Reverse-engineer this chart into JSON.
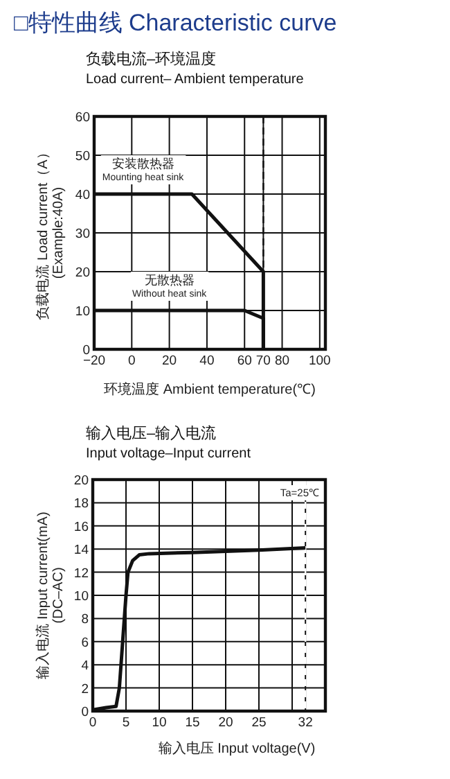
{
  "chart_data": [
    {
      "type": "line",
      "title": "□特性曲线 Characteristic curve",
      "subtitle": "负载电流–环境温度\nLoad current– Ambient temperature",
      "xlabel": "环境温度 Ambient temperature(℃)",
      "ylabel": "负载电流 Load current（A）\n(Example:40A)",
      "xlim": [
        -20,
        103
      ],
      "ylim": [
        0,
        60
      ],
      "xticks": [
        -20,
        0,
        20,
        40,
        60,
        70,
        80,
        100
      ],
      "yticks": [
        0,
        10,
        20,
        30,
        40,
        50,
        60
      ],
      "grid": true,
      "series": [
        {
          "name": "安装散热器\nMounting heat sink",
          "color": "#111111",
          "x": [
            -20,
            32,
            70,
            70
          ],
          "values": [
            40,
            40,
            20,
            0
          ]
        },
        {
          "name": "无散热器\nWithout heat sink",
          "color": "#111111",
          "x": [
            -20,
            60,
            70,
            70
          ],
          "values": [
            10,
            10,
            8,
            0
          ]
        }
      ],
      "ref_lines": [
        {
          "axis": "x",
          "value": 70,
          "line_style": "dashed",
          "color": "#111111"
        }
      ]
    },
    {
      "type": "line",
      "title": "输入电压–输入电流\nInput voltage–Input current",
      "xlabel": "输入电压 Input voltage(V)",
      "ylabel": "输入电流 Input current(mA)\n(DC–AC)",
      "xlim": [
        0,
        35
      ],
      "ylim": [
        0,
        20
      ],
      "xticks": [
        0,
        5,
        10,
        15,
        20,
        25,
        {
          "value": 30,
          "label": null
        },
        32
      ],
      "yticks": [
        0,
        2,
        4,
        6,
        8,
        10,
        12,
        14,
        16,
        18,
        20
      ],
      "grid": true,
      "series": [
        {
          "color": "#111111",
          "x": [
            0,
            2,
            3.5,
            4,
            4.5,
            5,
            5.3,
            6,
            7,
            8.5,
            15,
            20,
            25,
            32
          ],
          "values": [
            0.1,
            0.3,
            0.4,
            2,
            6,
            10,
            12,
            13,
            13.5,
            13.6,
            13.7,
            13.8,
            13.9,
            14.1
          ]
        }
      ],
      "ref_lines": [
        {
          "axis": "x",
          "value": 32,
          "line_style": "dashed",
          "color": "#ffffff"
        }
      ],
      "annotations": [
        "Ta=25℃"
      ]
    }
  ]
}
